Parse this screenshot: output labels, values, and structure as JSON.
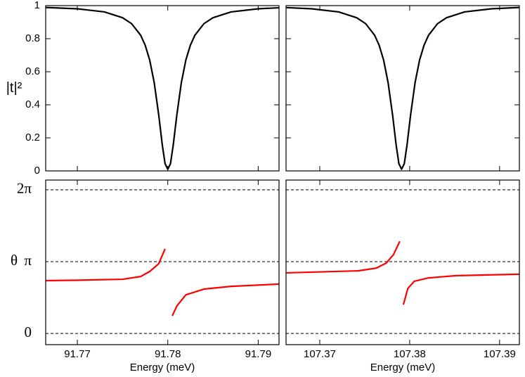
{
  "chart_data": [
    {
      "type": "line",
      "ylabel": "|t|²",
      "xlim": [
        91.7665,
        91.7923
      ],
      "xticks": [
        91.77,
        91.78,
        91.79
      ],
      "xtick_labels": false,
      "ylim": [
        0,
        1
      ],
      "yticks": [
        0,
        0.2,
        0.4,
        0.6,
        0.8,
        1
      ],
      "x": [
        91.7665,
        91.77,
        91.773,
        91.775,
        91.776,
        91.777,
        91.7775,
        91.778,
        91.7785,
        91.779,
        91.7794,
        91.7797,
        91.78,
        91.7803,
        91.7806,
        91.781,
        91.7815,
        91.782,
        91.7825,
        91.783,
        91.784,
        91.785,
        91.787,
        91.79,
        91.7923
      ],
      "series": [
        {
          "color": "#000000",
          "values": [
            0.989,
            0.981,
            0.962,
            0.927,
            0.891,
            0.821,
            0.761,
            0.671,
            0.534,
            0.338,
            0.155,
            0.044,
            0.01,
            0.044,
            0.155,
            0.338,
            0.534,
            0.671,
            0.761,
            0.821,
            0.891,
            0.927,
            0.962,
            0.981,
            0.987
          ]
        }
      ]
    },
    {
      "type": "line",
      "xlim": [
        107.36625,
        107.3922
      ],
      "xticks": [
        107.37,
        107.38,
        107.39
      ],
      "xtick_labels": false,
      "ylim": [
        0,
        1
      ],
      "yticks": [
        0,
        0.2,
        0.4,
        0.6,
        0.8,
        1
      ],
      "ytick_labels": false,
      "x": [
        107.3663,
        107.3691,
        107.3721,
        107.3741,
        107.3751,
        107.3761,
        107.3766,
        107.3771,
        107.3776,
        107.3781,
        107.3785,
        107.3788,
        107.3791,
        107.3794,
        107.3797,
        107.3801,
        107.3806,
        107.3811,
        107.3816,
        107.3821,
        107.3831,
        107.3841,
        107.3861,
        107.3891,
        107.3922
      ],
      "series": [
        {
          "color": "#000000",
          "values": [
            0.988,
            0.981,
            0.962,
            0.927,
            0.891,
            0.821,
            0.761,
            0.671,
            0.534,
            0.338,
            0.155,
            0.044,
            0.01,
            0.044,
            0.155,
            0.338,
            0.534,
            0.671,
            0.761,
            0.821,
            0.891,
            0.927,
            0.962,
            0.981,
            0.989
          ]
        }
      ]
    },
    {
      "type": "line",
      "xlabel": "Energy (meV)",
      "ylabel": "θ",
      "ylabel_color": "#ff0000",
      "ytick_color": "#ff0000",
      "grid": "dashed",
      "xlim": [
        91.7665,
        91.7923
      ],
      "xticks": [
        91.77,
        91.78,
        91.79
      ],
      "ylim": [
        -0.49,
        6.71
      ],
      "yticks": [
        0,
        {
          "value": 3.14159,
          "label": "π"
        },
        {
          "value": 6.28319,
          "label": "2π"
        }
      ],
      "x": [
        91.7665,
        91.7701,
        91.775,
        91.777,
        91.778,
        91.779,
        91.7797,
        91.7801,
        91.7805,
        91.781,
        91.782,
        91.784,
        91.787,
        91.7923
      ],
      "series": [
        {
          "color": "#ff0000",
          "values": [
            2.31,
            2.33,
            2.37,
            2.49,
            2.71,
            3.05,
            3.7,
            null,
            0.77,
            1.2,
            1.69,
            1.94,
            2.06,
            2.16
          ]
        }
      ]
    },
    {
      "type": "line",
      "xlabel": "Energy (meV)",
      "ytick_labels": false,
      "grid": "dashed",
      "xlim": [
        107.36625,
        107.3922
      ],
      "xticks": [
        107.37,
        107.38,
        107.39
      ],
      "ylim": [
        -0.49,
        6.71
      ],
      "yticks": [
        0,
        3.14159,
        6.28319
      ],
      "x": [
        107.3663,
        107.3743,
        107.3763,
        107.3774,
        107.3782,
        107.3789,
        107.3791,
        107.3793,
        107.3798,
        107.3805,
        107.3821,
        107.3852,
        107.3922
      ],
      "series": [
        {
          "color": "#ff0000",
          "values": [
            2.65,
            2.74,
            2.86,
            3.08,
            3.45,
            4.03,
            null,
            1.26,
            1.97,
            2.28,
            2.43,
            2.53,
            2.59
          ]
        }
      ]
    }
  ]
}
